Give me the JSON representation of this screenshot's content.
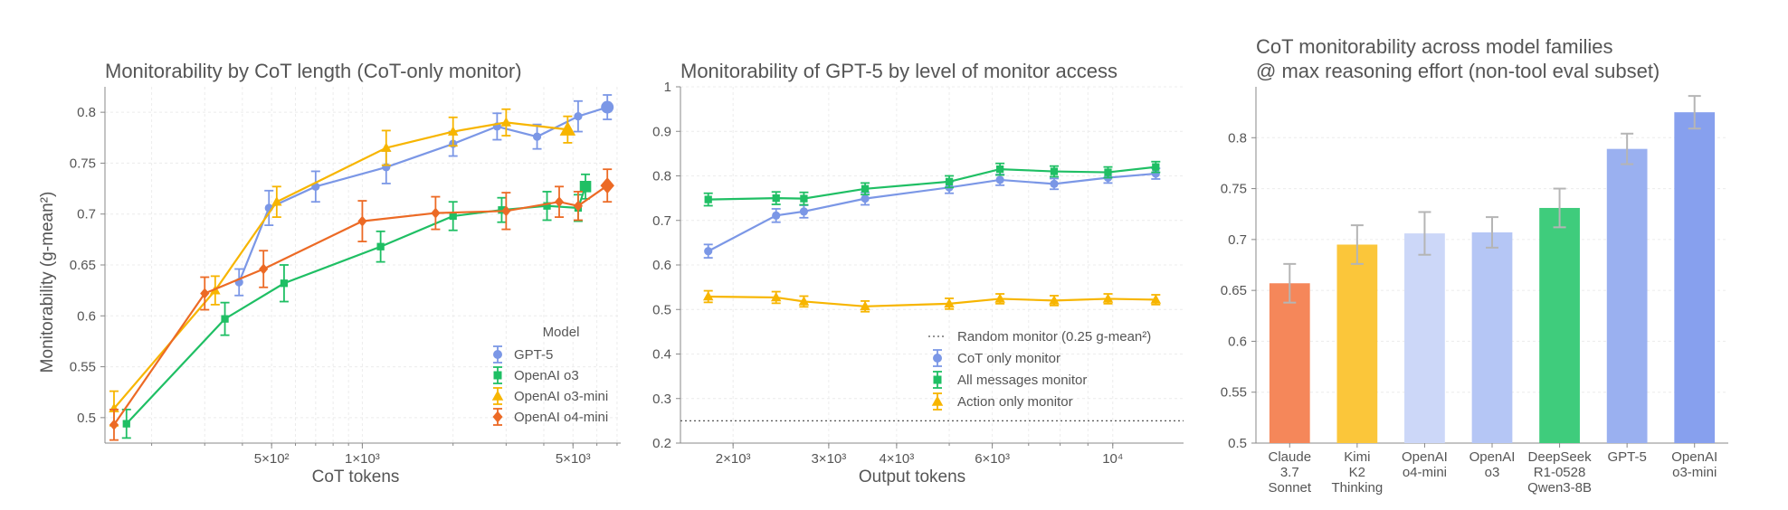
{
  "chart_data": [
    {
      "type": "line",
      "title": "Monitorability by CoT length (CoT-only monitor)",
      "xlabel": "CoT tokens",
      "ylabel": "Monitorability (g-mean²)",
      "x_scale": "log",
      "xlim": [
        140,
        7200
      ],
      "ylim": [
        0.475,
        0.825
      ],
      "x_ticks": [
        {
          "value": 500,
          "label": "5×10²"
        },
        {
          "value": 1000,
          "label": "1×10³"
        },
        {
          "value": 5000,
          "label": "5×10³"
        }
      ],
      "y_ticks": [
        0.5,
        0.55,
        0.6,
        0.65,
        0.7,
        0.75,
        0.8
      ],
      "grid": true,
      "legend_title": "Model",
      "legend_position": "lower-right",
      "series": [
        {
          "name": "GPT-5",
          "color": "#7b97e6",
          "marker": "circle",
          "x": [
            390,
            490,
            700,
            1200,
            2000,
            2800,
            3800,
            5200,
            6500
          ],
          "y": [
            0.633,
            0.706,
            0.727,
            0.746,
            0.769,
            0.786,
            0.776,
            0.796,
            0.805
          ],
          "err": [
            0.013,
            0.017,
            0.015,
            0.016,
            0.012,
            0.013,
            0.012,
            0.015,
            0.012
          ],
          "big_marker_index": 8
        },
        {
          "name": "OpenAI o3",
          "color": "#1fbf64",
          "marker": "square",
          "x": [
            165,
            350,
            550,
            1150,
            2000,
            2900,
            4100,
            5200,
            5500
          ],
          "y": [
            0.494,
            0.597,
            0.632,
            0.668,
            0.698,
            0.704,
            0.708,
            0.706,
            0.727
          ],
          "err": [
            0.014,
            0.016,
            0.018,
            0.015,
            0.014,
            0.012,
            0.014,
            0.013,
            0.012
          ],
          "big_marker_index": 8
        },
        {
          "name": "OpenAI o3-mini",
          "color": "#f7b500",
          "marker": "triangle",
          "x": [
            150,
            325,
            520,
            1200,
            2000,
            3000,
            4800
          ],
          "y": [
            0.509,
            0.625,
            0.712,
            0.765,
            0.781,
            0.79,
            0.783
          ],
          "err": [
            0.017,
            0.014,
            0.015,
            0.017,
            0.014,
            0.013,
            0.013
          ],
          "big_marker_index": 6
        },
        {
          "name": "OpenAI o4-mini",
          "color": "#ec6a25",
          "marker": "diamond",
          "x": [
            150,
            300,
            470,
            1000,
            1750,
            3000,
            4500,
            5200,
            6500
          ],
          "y": [
            0.493,
            0.622,
            0.646,
            0.693,
            0.701,
            0.703,
            0.712,
            0.708,
            0.728
          ],
          "err": [
            0.015,
            0.016,
            0.018,
            0.02,
            0.016,
            0.018,
            0.015,
            0.014,
            0.016
          ],
          "big_marker_index": 8
        }
      ]
    },
    {
      "type": "line",
      "title": "Monitorability of GPT-5 by level of monitor access",
      "xlabel": "Output tokens",
      "ylabel": "",
      "x_scale": "log",
      "xlim": [
        1600,
        13500
      ],
      "ylim": [
        0.2,
        1.0
      ],
      "x_ticks": [
        {
          "value": 2000,
          "label": "2×10³"
        },
        {
          "value": 3000,
          "label": "3×10³"
        },
        {
          "value": 4000,
          "label": "4×10³"
        },
        {
          "value": 6000,
          "label": "6×10³"
        },
        {
          "value": 10000,
          "label": "10⁴"
        }
      ],
      "y_ticks": [
        0.2,
        0.3,
        0.4,
        0.5,
        0.6,
        0.7,
        0.8,
        0.9,
        1.0
      ],
      "grid": true,
      "legend_position": "lower-right",
      "reference_line": {
        "name": "Random monitor (0.25 g-mean²)",
        "y": 0.25,
        "color": "#555555"
      },
      "series": [
        {
          "name": "CoT only monitor",
          "color": "#7b97e6",
          "marker": "circle",
          "x": [
            1800,
            2400,
            2700,
            3500,
            5000,
            6200,
            7800,
            9800,
            12000
          ],
          "y": [
            0.631,
            0.711,
            0.72,
            0.749,
            0.774,
            0.791,
            0.782,
            0.796,
            0.805
          ],
          "err": [
            0.015,
            0.015,
            0.014,
            0.014,
            0.013,
            0.012,
            0.012,
            0.012,
            0.012
          ]
        },
        {
          "name": "All messages monitor",
          "color": "#1fbf64",
          "marker": "square",
          "x": [
            1800,
            2400,
            2700,
            3500,
            5000,
            6200,
            7800,
            9800,
            12000
          ],
          "y": [
            0.747,
            0.75,
            0.749,
            0.771,
            0.787,
            0.815,
            0.81,
            0.808,
            0.82
          ],
          "err": [
            0.014,
            0.014,
            0.014,
            0.013,
            0.013,
            0.013,
            0.012,
            0.012,
            0.012
          ]
        },
        {
          "name": "Action only monitor",
          "color": "#f7b500",
          "marker": "triangle",
          "x": [
            1800,
            2400,
            2700,
            3500,
            5000,
            6200,
            7800,
            9800,
            12000
          ],
          "y": [
            0.529,
            0.527,
            0.518,
            0.507,
            0.513,
            0.524,
            0.52,
            0.524,
            0.522
          ],
          "err": [
            0.013,
            0.013,
            0.012,
            0.012,
            0.012,
            0.011,
            0.011,
            0.011,
            0.011
          ]
        }
      ]
    },
    {
      "type": "bar",
      "title": [
        "CoT monitorability across model families",
        "@ max reasoning effort (non-tool eval subset)"
      ],
      "xlabel": "",
      "ylabel": "",
      "ylim": [
        0.5,
        0.85
      ],
      "y_ticks": [
        0.5,
        0.55,
        0.6,
        0.65,
        0.7,
        0.75,
        0.8
      ],
      "grid": true,
      "categories": [
        [
          "Claude",
          "3.7",
          "Sonnet"
        ],
        [
          "Kimi",
          "K2",
          "Thinking"
        ],
        [
          "OpenAI",
          "o4-mini"
        ],
        [
          "OpenAI",
          "o3"
        ],
        [
          "DeepSeek",
          "R1-0528",
          "Qwen3-8B"
        ],
        [
          "GPT-5"
        ],
        [
          "OpenAI",
          "o3-mini"
        ]
      ],
      "values": [
        0.657,
        0.695,
        0.706,
        0.707,
        0.731,
        0.789,
        0.825
      ],
      "err": [
        0.019,
        0.019,
        0.021,
        0.015,
        0.019,
        0.015,
        0.016
      ],
      "colors": [
        "#f5875a",
        "#fbc63a",
        "#ccd7f8",
        "#b5c6f5",
        "#3fcc7c",
        "#9ab0f0",
        "#87a0ee"
      ]
    }
  ]
}
